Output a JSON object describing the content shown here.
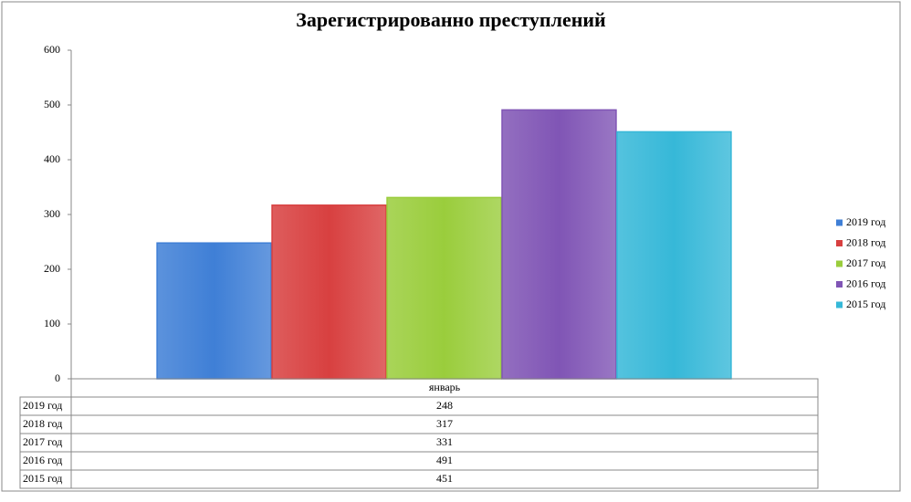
{
  "chart_data": {
    "type": "bar",
    "title": "Зарегистрированно преступлений",
    "categories": [
      "январь"
    ],
    "series": [
      {
        "name": "2019 год",
        "color": "#3f7fd6",
        "values": [
          248
        ]
      },
      {
        "name": "2018 год",
        "color": "#d84040",
        "values": [
          317
        ]
      },
      {
        "name": "2017 год",
        "color": "#9acd3c",
        "values": [
          331
        ]
      },
      {
        "name": "2016 год",
        "color": "#8055b5",
        "values": [
          491
        ]
      },
      {
        "name": "2015 год",
        "color": "#36b8d8",
        "values": [
          451
        ]
      }
    ],
    "ylim": [
      0,
      600
    ],
    "yticks": [
      0,
      100,
      200,
      300,
      400,
      500,
      600
    ],
    "legend": "right",
    "data_table": true
  }
}
